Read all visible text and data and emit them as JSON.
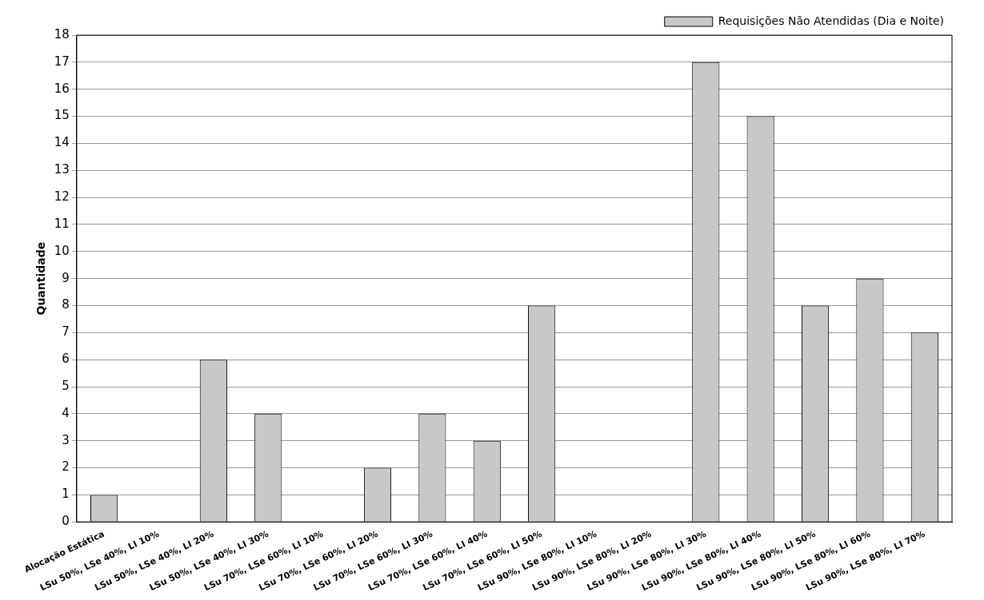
{
  "chart_data": {
    "type": "bar",
    "ylabel": "Quantidade",
    "categories": [
      "Alocação Estática",
      "LSu 50%, LSe 40%, LI 10%",
      "LSu 50%, LSe 40%, LI 20%",
      "LSu 50%, LSe 40%, LI 30%",
      "LSu 70%, LSe 60%, LI 10%",
      "LSu 70%, LSe 60%, LI 20%",
      "LSu 70%, LSe 60%, LI 30%",
      "LSu 70%, LSe 60%, LI 40%",
      "LSu 70%, LSe 60%, LI 50%",
      "LSu 90%, LSe 80%, LI 10%",
      "LSu 90%, LSe 80%, LI 20%",
      "LSu 90%, LSe 80%, LI 30%",
      "LSu 90%, LSe 80%, LI 40%",
      "LSu 90%, LSe 80%, LI 50%",
      "LSu 90%, LSe 80%, LI 60%",
      "LSu 90%, LSe 80%, LI 70%"
    ],
    "series": [
      {
        "name": "Requisições Não Atendidas (Dia e Noite)",
        "color": "#c8c8c8",
        "values": [
          1,
          0,
          6,
          4,
          0,
          2,
          4,
          3,
          8,
          0,
          0,
          17,
          15,
          8,
          9,
          7
        ]
      }
    ],
    "ylim": [
      0,
      18
    ],
    "yticks": [
      0,
      1,
      2,
      3,
      4,
      5,
      6,
      7,
      8,
      9,
      10,
      11,
      12,
      13,
      14,
      15,
      16,
      17,
      18
    ],
    "grid": "y",
    "legend": "top right"
  }
}
